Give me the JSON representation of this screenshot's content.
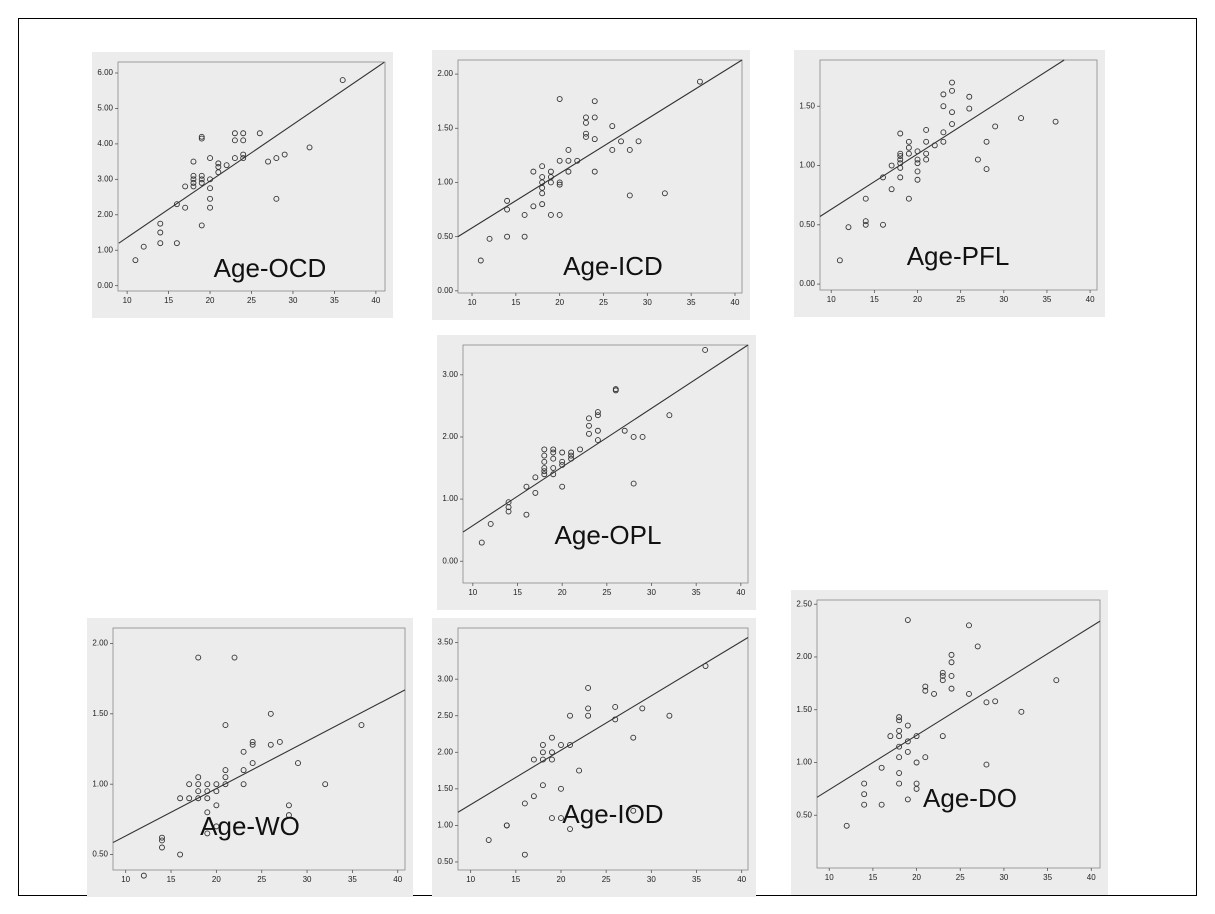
{
  "chart_data": [
    {
      "type": "scatter",
      "title": "Age-OCD",
      "color": "#333333",
      "background": "#ececec",
      "x": [
        11,
        12,
        14,
        14,
        14,
        16,
        16,
        17,
        17,
        18,
        18,
        18,
        18,
        18,
        19,
        19,
        19,
        19,
        19,
        19,
        20,
        20,
        20,
        20,
        20,
        21,
        21,
        21,
        22,
        23,
        23,
        23,
        24,
        24,
        24,
        24,
        26,
        27,
        28,
        28,
        29,
        32,
        36
      ],
      "values": [
        0.72,
        1.1,
        1.2,
        1.5,
        1.75,
        1.2,
        2.3,
        2.2,
        2.8,
        2.8,
        2.9,
        3.0,
        3.1,
        3.5,
        2.9,
        3.0,
        3.1,
        1.7,
        4.15,
        4.2,
        2.2,
        2.45,
        2.75,
        3.0,
        3.6,
        3.2,
        3.35,
        3.45,
        3.4,
        3.6,
        4.1,
        4.3,
        3.6,
        3.7,
        4.1,
        4.3,
        4.3,
        3.5,
        3.6,
        2.45,
        3.7,
        3.9,
        5.8
      ],
      "fit_line": {
        "x": [
          9,
          41
        ],
        "values": [
          1.2,
          6.3
        ]
      },
      "xlim": [
        8.9,
        41.1
      ],
      "ylim": [
        -0.15,
        6.31
      ],
      "xticks": [
        10,
        15,
        20,
        25,
        30,
        35,
        40
      ],
      "yticks": [
        {
          "value": 0,
          "label": "0.00"
        },
        {
          "value": 1,
          "label": "1.00"
        },
        {
          "value": 2,
          "label": "2.00"
        },
        {
          "value": 3,
          "label": "3.00"
        },
        {
          "value": 4,
          "label": "4.00"
        },
        {
          "value": 5,
          "label": "5.00"
        },
        {
          "value": 6,
          "label": "6.00"
        }
      ]
    },
    {
      "type": "scatter",
      "title": "Age-ICD",
      "color": "#333333",
      "background": "#ececec",
      "x": [
        11,
        12,
        14,
        14,
        14,
        16,
        16,
        17,
        17,
        18,
        18,
        18,
        18,
        18,
        18,
        19,
        19,
        19,
        19,
        20,
        20,
        20,
        20,
        20,
        21,
        21,
        21,
        22,
        23,
        23,
        23,
        23,
        24,
        24,
        24,
        24,
        26,
        26,
        27,
        28,
        28,
        29,
        32,
        36
      ],
      "values": [
        0.28,
        0.48,
        0.5,
        0.75,
        0.83,
        0.5,
        0.7,
        0.78,
        1.1,
        0.8,
        0.9,
        0.95,
        1.0,
        1.05,
        1.15,
        0.7,
        1.0,
        1.05,
        1.1,
        0.7,
        0.98,
        1.0,
        1.2,
        1.77,
        1.1,
        1.2,
        1.3,
        1.2,
        1.42,
        1.45,
        1.55,
        1.6,
        1.1,
        1.4,
        1.6,
        1.75,
        1.3,
        1.52,
        1.38,
        0.88,
        1.3,
        1.38,
        0.9,
        1.93
      ],
      "fit_line": {
        "x": [
          8.4,
          40.8
        ],
        "values": [
          0.5,
          2.13
        ]
      },
      "xlim": [
        8.4,
        40.8
      ],
      "ylim": [
        -0.02,
        2.13
      ],
      "xticks": [
        10,
        15,
        20,
        25,
        30,
        35,
        40
      ],
      "yticks": [
        {
          "value": 0,
          "label": "0.00"
        },
        {
          "value": 0.5,
          "label": "0.50"
        },
        {
          "value": 1,
          "label": "1.00"
        },
        {
          "value": 1.5,
          "label": "1.50"
        },
        {
          "value": 2,
          "label": "2.00"
        }
      ]
    },
    {
      "type": "scatter",
      "title": "Age-PFL",
      "color": "#333333",
      "background": "#ececec",
      "x": [
        11,
        12,
        14,
        14,
        14,
        16,
        16,
        17,
        17,
        18,
        18,
        18,
        18,
        18,
        18,
        18,
        19,
        19,
        19,
        19,
        20,
        20,
        20,
        20,
        20,
        21,
        21,
        21,
        21,
        22,
        23,
        23,
        23,
        23,
        24,
        24,
        24,
        24,
        26,
        26,
        27,
        28,
        28,
        29,
        32,
        36
      ],
      "values": [
        0.2,
        0.48,
        0.5,
        0.53,
        0.72,
        0.5,
        0.9,
        0.8,
        1.0,
        0.9,
        0.98,
        1.02,
        1.05,
        1.08,
        1.1,
        1.27,
        0.72,
        1.1,
        1.15,
        1.2,
        0.88,
        0.95,
        1.02,
        1.05,
        1.12,
        1.05,
        1.1,
        1.2,
        1.3,
        1.17,
        1.2,
        1.28,
        1.5,
        1.6,
        1.35,
        1.45,
        1.63,
        1.7,
        1.48,
        1.58,
        1.05,
        0.97,
        1.2,
        1.33,
        1.4,
        1.37
      ],
      "fit_line": {
        "x": [
          8.7,
          37
        ],
        "values": [
          0.57,
          1.89
        ]
      },
      "xlim": [
        8.7,
        40.8
      ],
      "ylim": [
        -0.05,
        1.89
      ],
      "xticks": [
        10,
        15,
        20,
        25,
        30,
        35,
        40
      ],
      "yticks": [
        {
          "value": 0,
          "label": "0.00"
        },
        {
          "value": 0.5,
          "label": "0.50"
        },
        {
          "value": 1,
          "label": "1.00"
        },
        {
          "value": 1.5,
          "label": "1.50"
        }
      ]
    },
    {
      "type": "scatter",
      "title": "Age-OPL",
      "color": "#333333",
      "background": "#ececec",
      "x": [
        11,
        12,
        14,
        14,
        14,
        16,
        16,
        17,
        17,
        18,
        18,
        18,
        18,
        18,
        18,
        19,
        19,
        19,
        19,
        19,
        20,
        20,
        20,
        20,
        21,
        21,
        21,
        22,
        23,
        23,
        23,
        24,
        24,
        24,
        24,
        26,
        26,
        27,
        28,
        28,
        29,
        32,
        36
      ],
      "values": [
        0.3,
        0.6,
        0.8,
        0.87,
        0.95,
        0.75,
        1.2,
        1.1,
        1.35,
        1.4,
        1.5,
        1.6,
        1.7,
        1.8,
        1.45,
        1.4,
        1.5,
        1.65,
        1.75,
        1.8,
        1.2,
        1.55,
        1.6,
        1.75,
        1.65,
        1.7,
        1.75,
        1.8,
        2.05,
        2.18,
        2.3,
        1.95,
        2.1,
        2.35,
        2.4,
        2.75,
        2.77,
        2.1,
        1.25,
        2.0,
        2.0,
        2.35,
        3.4
      ],
      "fit_line": {
        "x": [
          8.9,
          40.8
        ],
        "values": [
          0.47,
          3.48
        ]
      },
      "xlim": [
        8.9,
        40.8
      ],
      "ylim": [
        -0.35,
        3.48
      ],
      "xticks": [
        10,
        15,
        20,
        25,
        30,
        35,
        40
      ],
      "yticks": [
        {
          "value": 0,
          "label": "0.00"
        },
        {
          "value": 1,
          "label": "1.00"
        },
        {
          "value": 2,
          "label": "2.00"
        },
        {
          "value": 3,
          "label": "3.00"
        }
      ]
    },
    {
      "type": "scatter",
      "title": "Age-WO",
      "color": "#333333",
      "background": "#ececec",
      "x": [
        12,
        14,
        14,
        14,
        16,
        16,
        17,
        17,
        18,
        18,
        18,
        18,
        18,
        19,
        19,
        19,
        19,
        19,
        20,
        20,
        20,
        20,
        21,
        21,
        21,
        21,
        22,
        23,
        23,
        23,
        24,
        24,
        24,
        26,
        26,
        27,
        28,
        28,
        29,
        32,
        36
      ],
      "values": [
        0.35,
        0.55,
        0.6,
        0.62,
        0.5,
        0.9,
        0.9,
        1.0,
        0.9,
        0.95,
        1.0,
        1.05,
        1.9,
        0.65,
        0.8,
        0.9,
        0.95,
        1.0,
        0.7,
        0.85,
        0.95,
        1.0,
        1.0,
        1.05,
        1.1,
        1.42,
        1.9,
        1.0,
        1.1,
        1.23,
        1.15,
        1.28,
        1.3,
        1.28,
        1.5,
        1.3,
        0.78,
        0.85,
        1.15,
        1.0,
        1.42
      ],
      "fit_line": {
        "x": [
          8.6,
          40.8
        ],
        "values": [
          0.585,
          1.67
        ]
      },
      "xlim": [
        8.6,
        40.8
      ],
      "ylim": [
        0.39,
        2.11
      ],
      "xticks": [
        10,
        15,
        20,
        25,
        30,
        35,
        40
      ],
      "yticks": [
        {
          "value": 0.5,
          "label": "0.50"
        },
        {
          "value": 1,
          "label": "1.00"
        },
        {
          "value": 1.5,
          "label": "1.50"
        },
        {
          "value": 2,
          "label": "2.00"
        }
      ]
    },
    {
      "type": "scatter",
      "title": "Age-IOD",
      "color": "#333333",
      "background": "#ececec",
      "x": [
        12,
        14,
        14,
        16,
        16,
        17,
        17,
        18,
        18,
        18,
        18,
        19,
        19,
        19,
        19,
        20,
        20,
        20,
        21,
        21,
        21,
        22,
        23,
        23,
        23,
        26,
        26,
        28,
        28,
        29,
        32,
        36
      ],
      "values": [
        0.8,
        1.0,
        1.0,
        0.6,
        1.3,
        1.4,
        1.9,
        1.55,
        1.9,
        2.0,
        2.1,
        1.1,
        1.9,
        2.0,
        2.2,
        1.1,
        1.5,
        2.1,
        0.95,
        2.1,
        2.5,
        1.75,
        2.5,
        2.6,
        2.88,
        2.45,
        2.62,
        1.2,
        2.2,
        2.6,
        2.5,
        3.18
      ],
      "fit_line": {
        "x": [
          8.6,
          40.7
        ],
        "values": [
          1.18,
          3.57
        ]
      },
      "xlim": [
        8.6,
        40.7
      ],
      "ylim": [
        0.39,
        3.7
      ],
      "xticks": [
        10,
        15,
        20,
        25,
        30,
        35,
        40
      ],
      "yticks": [
        {
          "value": 0.5,
          "label": "0.50"
        },
        {
          "value": 1,
          "label": "1.00"
        },
        {
          "value": 1.5,
          "label": "1.50"
        },
        {
          "value": 2,
          "label": "2.00"
        },
        {
          "value": 2.5,
          "label": "2.50"
        },
        {
          "value": 3,
          "label": "3.00"
        },
        {
          "value": 3.5,
          "label": "3.50"
        }
      ]
    },
    {
      "type": "scatter",
      "title": "Age-DO",
      "color": "#333333",
      "background": "#ececec",
      "x": [
        12,
        14,
        14,
        14,
        16,
        16,
        17,
        18,
        18,
        18,
        18,
        18,
        18,
        18,
        18,
        19,
        19,
        19,
        19,
        19,
        20,
        20,
        20,
        20,
        21,
        21,
        21,
        22,
        23,
        23,
        23,
        23,
        24,
        24,
        24,
        24,
        26,
        26,
        27,
        28,
        28,
        29,
        32,
        36
      ],
      "values": [
        0.4,
        0.6,
        0.7,
        0.8,
        0.6,
        0.95,
        1.25,
        0.8,
        0.9,
        1.05,
        1.15,
        1.25,
        1.3,
        1.4,
        1.43,
        0.65,
        1.1,
        1.2,
        1.35,
        2.35,
        0.75,
        0.8,
        1.0,
        1.25,
        1.05,
        1.68,
        1.72,
        1.65,
        1.25,
        1.78,
        1.82,
        1.85,
        1.7,
        1.82,
        1.95,
        2.02,
        1.65,
        2.3,
        2.1,
        0.98,
        1.57,
        1.58,
        1.48,
        1.78
      ],
      "fit_line": {
        "x": [
          8.6,
          41
        ],
        "values": [
          0.67,
          2.34
        ]
      },
      "xlim": [
        8.6,
        41
      ],
      "ylim": [
        0.0,
        2.54
      ],
      "xticks": [
        10,
        15,
        20,
        25,
        30,
        35,
        40
      ],
      "yticks": [
        {
          "value": 0.5,
          "label": "0.50"
        },
        {
          "value": 1,
          "label": "1.00"
        },
        {
          "value": 1.5,
          "label": "1.50"
        },
        {
          "value": 2,
          "label": "2.00"
        },
        {
          "value": 2.5,
          "label": "2.50"
        }
      ]
    }
  ]
}
